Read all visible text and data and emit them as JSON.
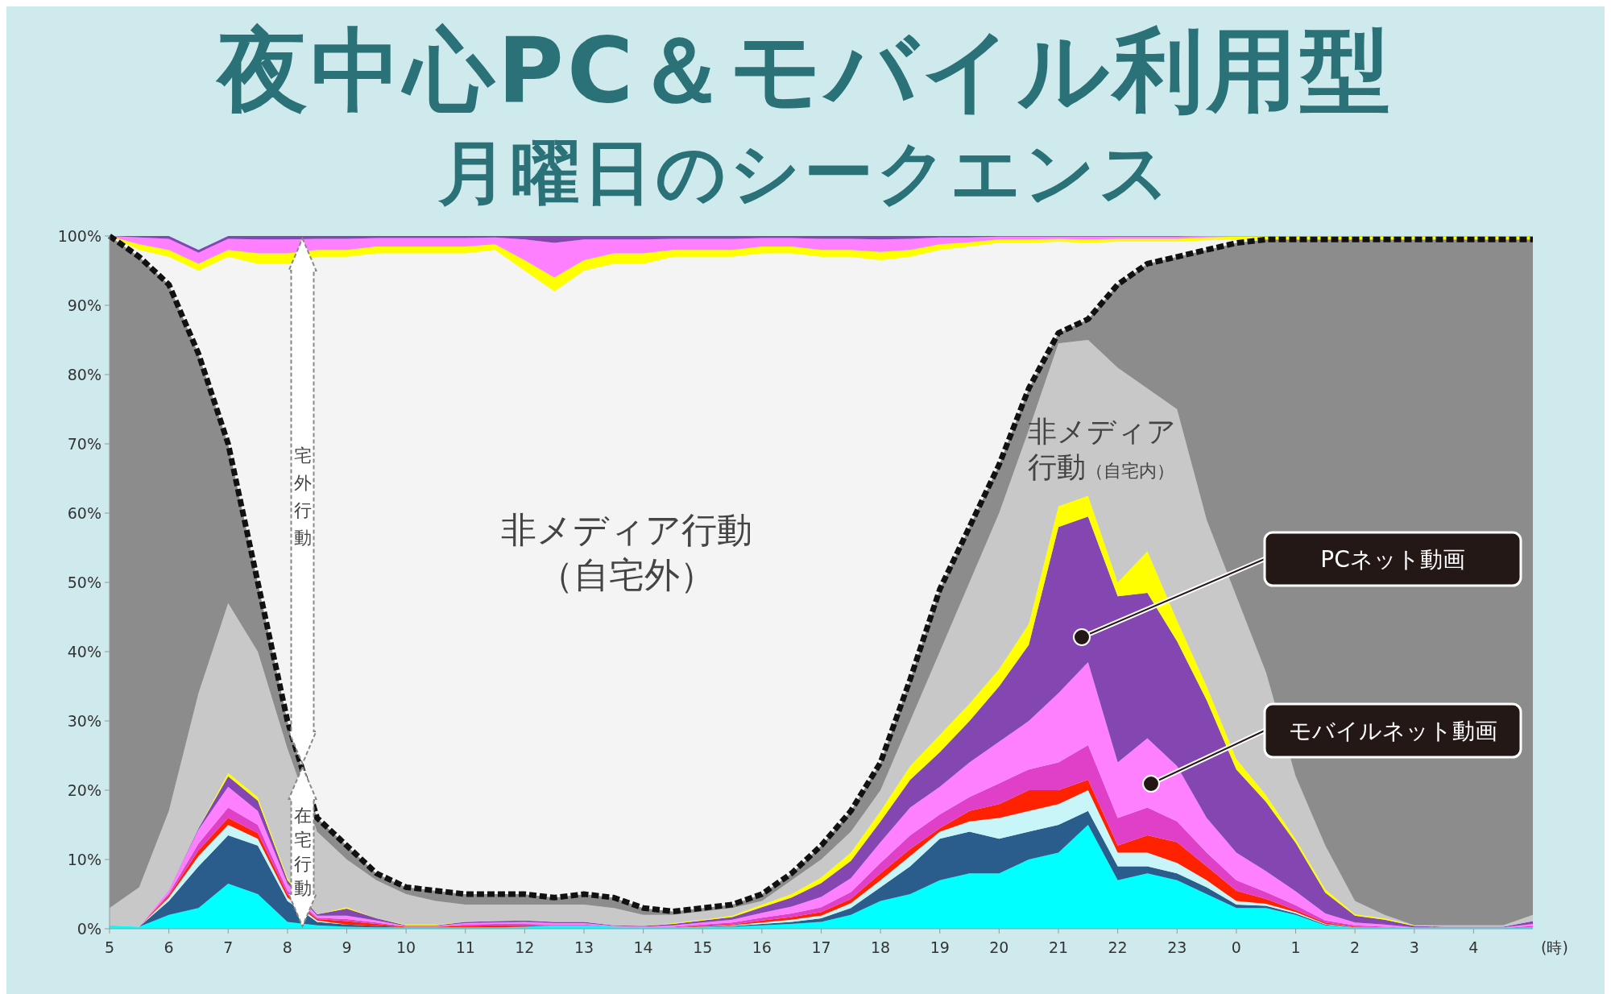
{
  "chart_data": {
    "type": "area",
    "stacked": true,
    "title": "夜中心PC＆モバイル利用型",
    "subtitle": "月曜日のシークエンス",
    "xlabel": "(時)",
    "categories": [
      "5",
      null,
      "6",
      null,
      "7",
      null,
      "8",
      null,
      "9",
      null,
      "10",
      null,
      "11",
      null,
      "12",
      null,
      "13",
      null,
      "14",
      null,
      "15",
      null,
      "16",
      null,
      "17",
      null,
      "18",
      null,
      "19",
      null,
      "20",
      null,
      "21",
      null,
      "22",
      null,
      "23",
      null,
      "0",
      null,
      "1",
      null,
      "2",
      null,
      "3",
      null,
      "4",
      null,
      null
    ],
    "ylim": [
      0,
      100
    ],
    "yticks": [
      {
        "value": 0,
        "label": "0%"
      },
      {
        "value": 10,
        "label": "10%"
      },
      {
        "value": 20,
        "label": "20%"
      },
      {
        "value": 30,
        "label": "30%"
      },
      {
        "value": 40,
        "label": "40%"
      },
      {
        "value": 50,
        "label": "50%"
      },
      {
        "value": 60,
        "label": "60%"
      },
      {
        "value": 70,
        "label": "70%"
      },
      {
        "value": 80,
        "label": "80%"
      },
      {
        "value": 90,
        "label": "90%"
      },
      {
        "value": 100,
        "label": "100%"
      }
    ],
    "series": [
      {
        "color": "#00ffff",
        "values": [
          0.5,
          0.3,
          2,
          3,
          6.5,
          5,
          1,
          0.5,
          0.3,
          0.2,
          0.2,
          0.2,
          0.2,
          0.2,
          0.3,
          0.5,
          0.5,
          0.3,
          0.2,
          0.2,
          0.3,
          0.3,
          0.5,
          0.7,
          1,
          2,
          4,
          5,
          7,
          8,
          8,
          10,
          11,
          15,
          7,
          8,
          7,
          5,
          3,
          3,
          2,
          0.5,
          0.2,
          0.2,
          0.1,
          0.1,
          0.1,
          0.1,
          0.2
        ]
      },
      {
        "color": "#2a5d8c",
        "values": [
          0,
          0,
          2,
          6,
          7,
          7,
          3,
          0.5,
          0.3,
          0.2,
          0,
          0,
          0,
          0,
          0,
          0,
          0,
          0,
          0,
          0,
          0,
          0.1,
          0.2,
          0.3,
          0.5,
          1,
          2,
          4,
          6,
          6,
          5,
          4,
          4,
          2,
          2,
          1,
          1,
          1,
          0.5,
          0.3,
          0.2,
          0.1,
          0,
          0,
          0,
          0,
          0,
          0,
          0
        ]
      },
      {
        "color": "#c8f6f8",
        "values": [
          0,
          0,
          0.5,
          1.5,
          1.5,
          1,
          0.5,
          0.2,
          0,
          0,
          0,
          0,
          0,
          0,
          0,
          0,
          0,
          0,
          0,
          0,
          0,
          0.1,
          0.2,
          0.3,
          0.4,
          0.7,
          1,
          1.5,
          1,
          1.5,
          3,
          3,
          3,
          3,
          2,
          2,
          1.5,
          1,
          0.5,
          0.3,
          0.2,
          0.1,
          0,
          0,
          0,
          0,
          0,
          0,
          0
        ]
      },
      {
        "color": "#ff2200",
        "values": [
          0,
          0,
          0.3,
          0.8,
          1,
          0.8,
          0.5,
          0.2,
          0.5,
          0.3,
          0.1,
          0.1,
          0.2,
          0.3,
          0.2,
          0,
          0,
          0,
          0,
          0,
          0.1,
          0.1,
          0.3,
          0.4,
          0.5,
          0.6,
          1,
          1,
          0.5,
          1.5,
          2,
          3,
          2,
          1.5,
          1,
          2.5,
          3,
          2,
          1.5,
          0.7,
          0.3,
          0.2,
          0.1,
          0,
          0,
          0,
          0,
          0,
          0
        ]
      },
      {
        "color": "#e040c8",
        "values": [
          0,
          0,
          0.3,
          1,
          1.5,
          1.2,
          0.5,
          0.2,
          0.3,
          0.2,
          0,
          0,
          0.2,
          0.2,
          0.2,
          0.1,
          0.1,
          0,
          0,
          0.1,
          0.2,
          0.3,
          0.4,
          0.5,
          0.7,
          1,
          1.5,
          2,
          2,
          2,
          3,
          3,
          4,
          5,
          4,
          4,
          3,
          2,
          1.5,
          1,
          0.7,
          0.3,
          0.2,
          0.1,
          0,
          0,
          0,
          0,
          0.2
        ]
      },
      {
        "color": "#ff80ff",
        "values": [
          0,
          0,
          0.5,
          2,
          3,
          2,
          1,
          0.3,
          0.5,
          0.3,
          0.1,
          0.1,
          0.2,
          0.2,
          0.3,
          0.2,
          0.2,
          0.1,
          0.1,
          0.2,
          0.3,
          0.4,
          0.7,
          1,
          1.5,
          2,
          3,
          4,
          4,
          5,
          6,
          7,
          10,
          12,
          8,
          10,
          8,
          5,
          4,
          3,
          2,
          1,
          0.4,
          0.3,
          0.1,
          0.1,
          0.1,
          0.1,
          0.3
        ]
      },
      {
        "color": "#8446b0",
        "values": [
          0,
          0,
          0,
          0.2,
          1.5,
          1.5,
          0.5,
          0.2,
          1,
          0.3,
          0.1,
          0.1,
          0.2,
          0.2,
          0.2,
          0.2,
          0.2,
          0.1,
          0.1,
          0.2,
          0.3,
          0.4,
          0.8,
          1.3,
          2,
          2.5,
          3,
          4,
          5,
          6,
          8,
          11,
          24,
          21,
          24,
          21,
          18,
          17,
          12,
          10,
          7,
          3,
          1,
          0.7,
          0.2,
          0.1,
          0.1,
          0.1,
          0.4
        ]
      },
      {
        "color": "#ffff00",
        "values": [
          0,
          0,
          0,
          0,
          0.5,
          0.5,
          0.3,
          0,
          0.2,
          0,
          0.1,
          0.1,
          0,
          0,
          0,
          0,
          0,
          0,
          0,
          0.1,
          0.1,
          0.2,
          0.4,
          0.5,
          0.8,
          1.2,
          1.5,
          2,
          2.5,
          2.5,
          2.5,
          3,
          3,
          3,
          2,
          6,
          3,
          2,
          1.5,
          1,
          0.5,
          0.5,
          0.2,
          0.2,
          0.1,
          0,
          0,
          0,
          0
        ]
      },
      {
        "color": "#c8c8c8",
        "values": [
          2.5,
          5.7,
          11.4,
          19.5,
          24.5,
          21,
          18.7,
          11.9,
          6.9,
          5.5,
          4.4,
          3.4,
          2.5,
          2.4,
          2.3,
          2.5,
          2.5,
          2.5,
          1.6,
          1.2,
          1.2,
          1.1,
          0.5,
          2,
          2.6,
          3,
          3,
          6.5,
          12,
          17.5,
          22.5,
          28,
          23.5,
          22.5,
          31,
          23.5,
          30.5,
          24,
          23.5,
          17.7,
          9.1,
          6.3,
          1.9,
          0.5,
          0,
          0.2,
          0.2,
          0.2,
          0.9
        ]
      },
      {
        "color": "#8c8c8c",
        "line_style": "dotted",
        "values": [
          97,
          91,
          76,
          49,
          23,
          10,
          4,
          2,
          2,
          1,
          1,
          1.5,
          1.5,
          1.5,
          1.5,
          1,
          1.5,
          1.5,
          1,
          0.5,
          0.5,
          0.5,
          1,
          1,
          2,
          3,
          4,
          6,
          9,
          8,
          7,
          6,
          1.5,
          3,
          12,
          18,
          22,
          39,
          51,
          62.5,
          77.5,
          87.5,
          95.5,
          97.5,
          99,
          99,
          99,
          99,
          97.5
        ]
      },
      {
        "color": "#f4f4f4",
        "values": [
          0,
          1,
          4,
          12,
          27,
          46,
          66,
          81,
          85,
          89.5,
          91.5,
          92,
          92.5,
          93,
          90,
          87.5,
          90,
          91.5,
          93,
          94.5,
          94,
          93.5,
          92.5,
          89.5,
          85,
          80,
          72.5,
          61,
          49,
          40.5,
          32,
          21,
          13.2,
          11,
          6.2,
          3.2,
          2.2,
          1.4,
          0.5,
          0,
          0,
          0,
          0,
          0,
          0,
          0,
          0,
          0,
          0
        ]
      },
      {
        "color": "#ffff00",
        "values": [
          0,
          0.8,
          1,
          1,
          1,
          1.5,
          1.5,
          1,
          1,
          1,
          1,
          1,
          1,
          0.8,
          1.5,
          2,
          1.5,
          1.5,
          1.5,
          1,
          1,
          1,
          1,
          1,
          1,
          1,
          1.2,
          1,
          0.8,
          0.6,
          0.5,
          0.5,
          0.4,
          0.5,
          0.4,
          0.4,
          0.4,
          0.4,
          0.4,
          0.4,
          0.4,
          0.4,
          0.4,
          0.4,
          0.4,
          0.4,
          0.4,
          0.4,
          0.4
        ]
      },
      {
        "color": "#ff80ff",
        "values": [
          0,
          1,
          1.6,
          1.6,
          1.6,
          2,
          2,
          1.6,
          1.6,
          1.2,
          1.2,
          1.2,
          1.2,
          1,
          3,
          5,
          3,
          2,
          2,
          1.6,
          1.6,
          1.6,
          1.2,
          1.2,
          1.6,
          1.6,
          1.8,
          1.6,
          1,
          0.7,
          0.4,
          0.4,
          0.3,
          0.4,
          0.3,
          0.3,
          0.3,
          0.2,
          0.1,
          0.1,
          0.1,
          0.1,
          0.1,
          0.1,
          0.1,
          0.1,
          0.1,
          0.1,
          0.1
        ]
      },
      {
        "color": "#8446b0",
        "values": [
          0,
          0.2,
          0.4,
          0.4,
          0.4,
          0.5,
          0.5,
          0.4,
          0.4,
          0.3,
          0.3,
          0.3,
          0.3,
          0.2,
          0.5,
          1,
          0.5,
          0.5,
          0.5,
          0.4,
          0.4,
          0.4,
          0.3,
          0.3,
          0.4,
          0.4,
          0.5,
          0.4,
          0.2,
          0.2,
          0.1,
          0.1,
          0.1,
          0.1,
          0.1,
          0.1,
          0.1,
          0,
          0,
          0,
          0,
          0,
          0,
          0,
          0,
          0,
          0,
          0,
          0
        ]
      }
    ],
    "annotations": [
      "非メディア行動（自宅外）",
      "非メディア行動（自宅内）",
      "宅外行動",
      "在宅行動",
      "PCネット動画",
      "モバイルネット動画"
    ]
  }
}
